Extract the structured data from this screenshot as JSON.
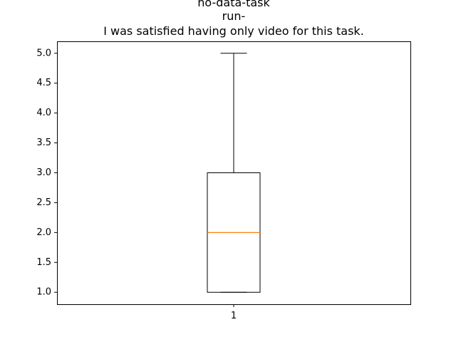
{
  "chart_data": {
    "type": "box",
    "title_lines": [
      "no-data-task",
      "run-",
      "I was satisfied having only video for this task."
    ],
    "xlabel": "",
    "ylabel": "",
    "categories": [
      "1"
    ],
    "yticks": [
      "1.0",
      "1.5",
      "2.0",
      "2.5",
      "3.0",
      "3.5",
      "4.0",
      "4.5",
      "5.0"
    ],
    "ylim": [
      0.8,
      5.2
    ],
    "boxes": [
      {
        "category": "1",
        "whisker_low": 1.0,
        "q1": 1.0,
        "median": 2.0,
        "q3": 3.0,
        "whisker_high": 5.0
      }
    ],
    "grid": false,
    "colors": {
      "box": "#000000",
      "median": "#ff7f0e"
    }
  }
}
